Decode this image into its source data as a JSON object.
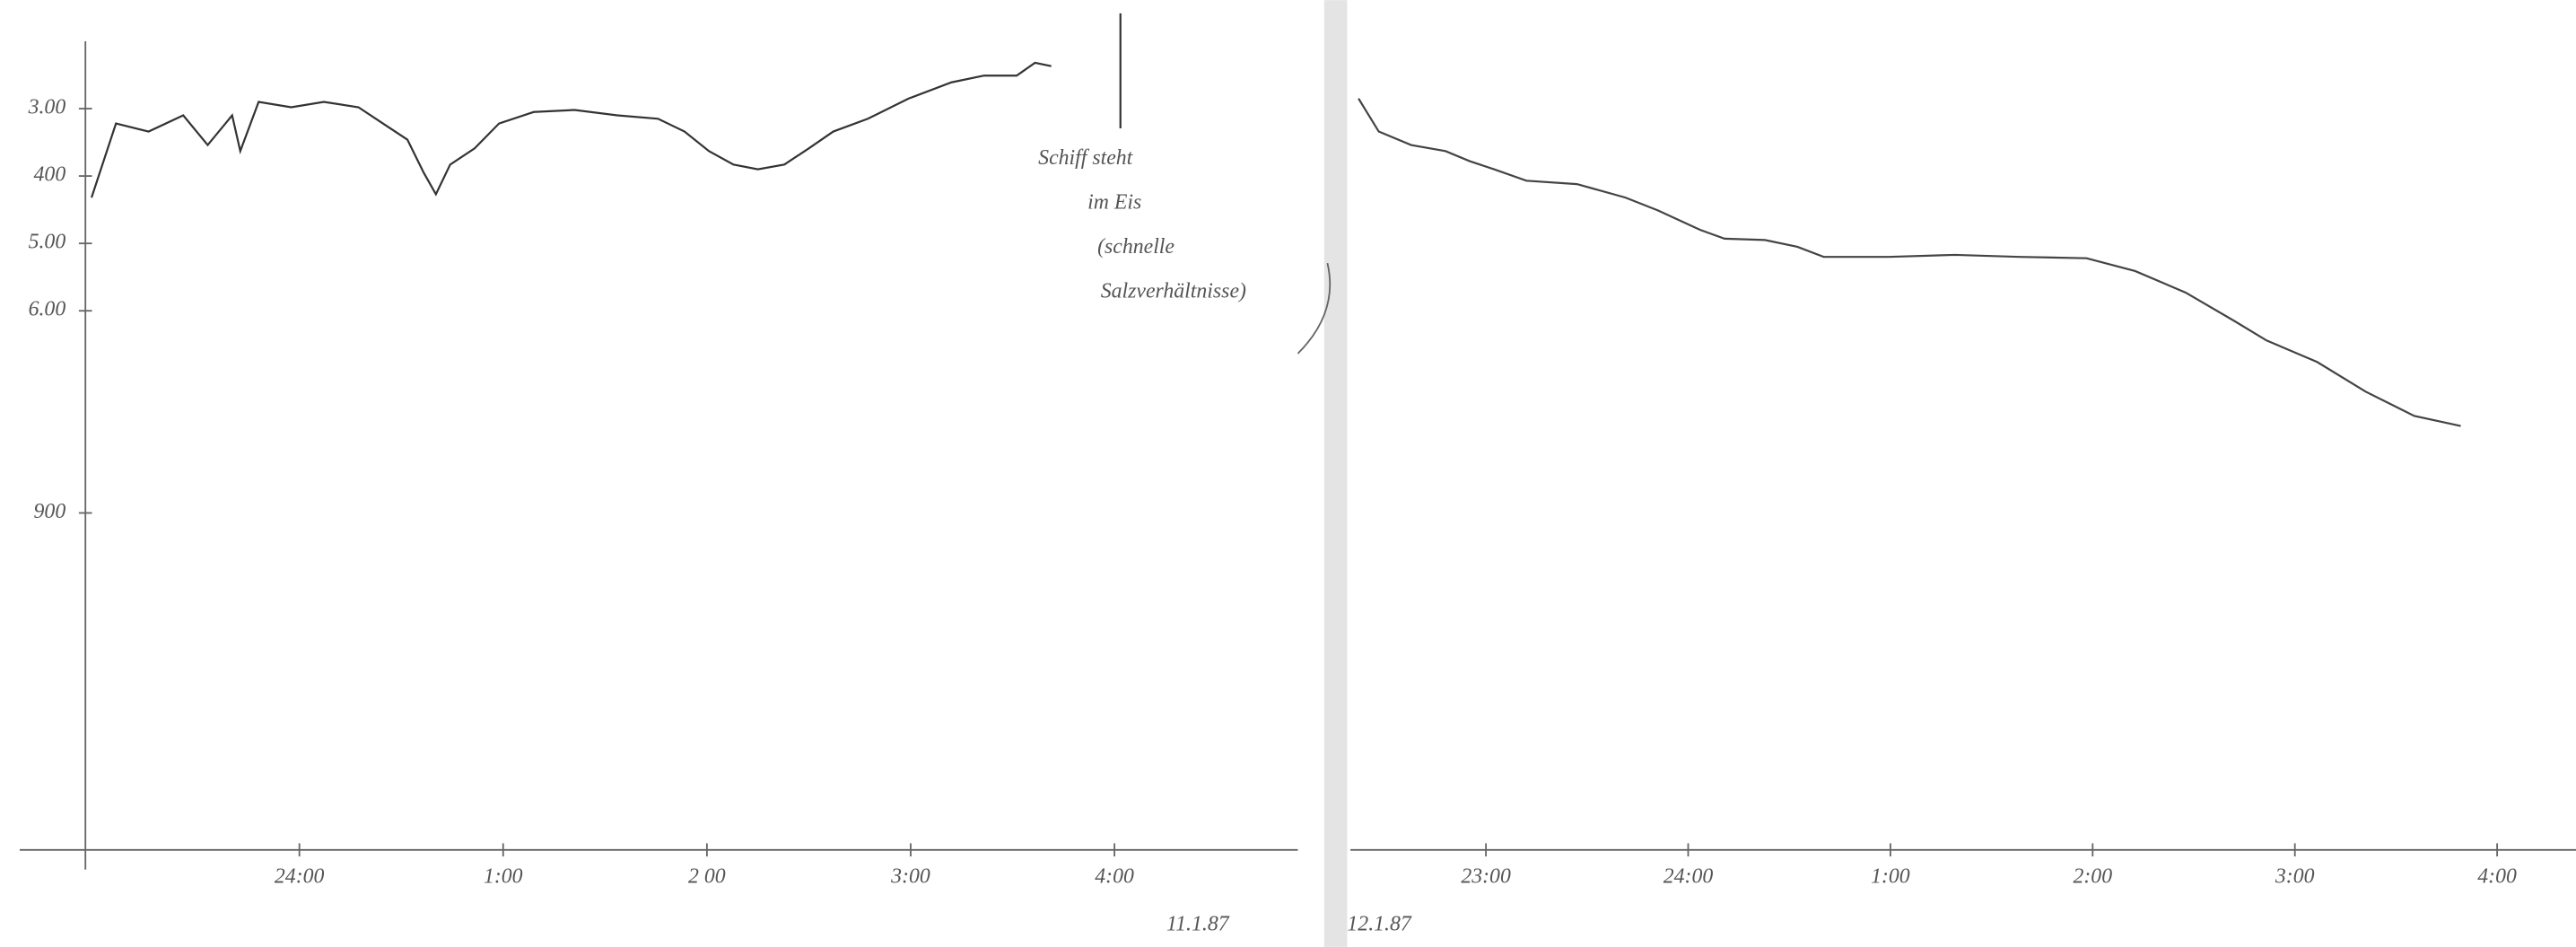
{
  "chart_data": [
    {
      "type": "line",
      "color": "#333333",
      "y_inverted": true,
      "xlim": [
        22.95,
        28.9
      ],
      "ylim": [
        200,
        1400
      ],
      "xticks": [
        {
          "value": 24,
          "label": "24:00"
        },
        {
          "value": 25,
          "label": "1:00"
        },
        {
          "value": 26,
          "label": "2 00"
        },
        {
          "value": 27,
          "label": "3:00"
        },
        {
          "value": 28,
          "label": "4:00"
        }
      ],
      "yticks": [
        {
          "value": 300,
          "label": "3.00"
        },
        400,
        {
          "value": 500,
          "label": "5.00"
        },
        {
          "value": 600,
          "label": "6.00"
        },
        900
      ],
      "annotation": [
        "Schiff steht",
        "im Eis",
        "(schnelle",
        "Salzverhältnisse)"
      ],
      "date_label": "11.1.87",
      "x": [
        22.98,
        23.1,
        23.26,
        23.43,
        23.55,
        23.67,
        23.71,
        23.8,
        23.96,
        24.12,
        24.29,
        24.41,
        24.53,
        24.61,
        24.67,
        24.74,
        24.86,
        24.98,
        25.15,
        25.35,
        25.56,
        25.76,
        25.89,
        26.01,
        26.13,
        26.25,
        26.38,
        26.5,
        26.62,
        26.79,
        26.99,
        27.2,
        27.36,
        27.52,
        27.61,
        27.69
      ],
      "values": [
        432,
        322,
        334,
        310,
        354,
        310,
        363,
        290,
        298,
        290,
        298,
        322,
        346,
        395,
        427,
        383,
        359,
        322,
        305,
        302,
        310,
        315,
        334,
        363,
        383,
        390,
        383,
        359,
        334,
        315,
        285,
        261,
        251,
        251,
        232,
        237
      ]
    },
    {
      "type": "line",
      "color": "#444444",
      "y_inverted": true,
      "xlim": [
        22.33,
        28.39
      ],
      "ylim": [
        200,
        1400
      ],
      "xticks": [
        {
          "value": 23,
          "label": "23:00"
        },
        {
          "value": 24,
          "label": "24:00"
        },
        {
          "value": 25,
          "label": "1:00"
        },
        {
          "value": 26,
          "label": "2:00"
        },
        {
          "value": 27,
          "label": "3:00"
        },
        {
          "value": 28,
          "label": "4:00"
        }
      ],
      "date_label": "12.1.87",
      "x": [
        22.37,
        22.47,
        22.63,
        22.8,
        22.92,
        23.04,
        23.2,
        23.45,
        23.69,
        23.85,
        24.06,
        24.18,
        24.38,
        24.54,
        24.67,
        24.99,
        25.32,
        25.64,
        25.97,
        26.21,
        26.46,
        26.7,
        26.86,
        27.11,
        27.35,
        27.59,
        27.82
      ],
      "values": [
        285,
        334,
        354,
        363,
        378,
        390,
        407,
        412,
        432,
        451,
        480,
        493,
        495,
        505,
        520,
        520,
        517,
        520,
        522,
        541,
        573,
        615,
        644,
        676,
        720,
        756,
        771
      ]
    }
  ]
}
